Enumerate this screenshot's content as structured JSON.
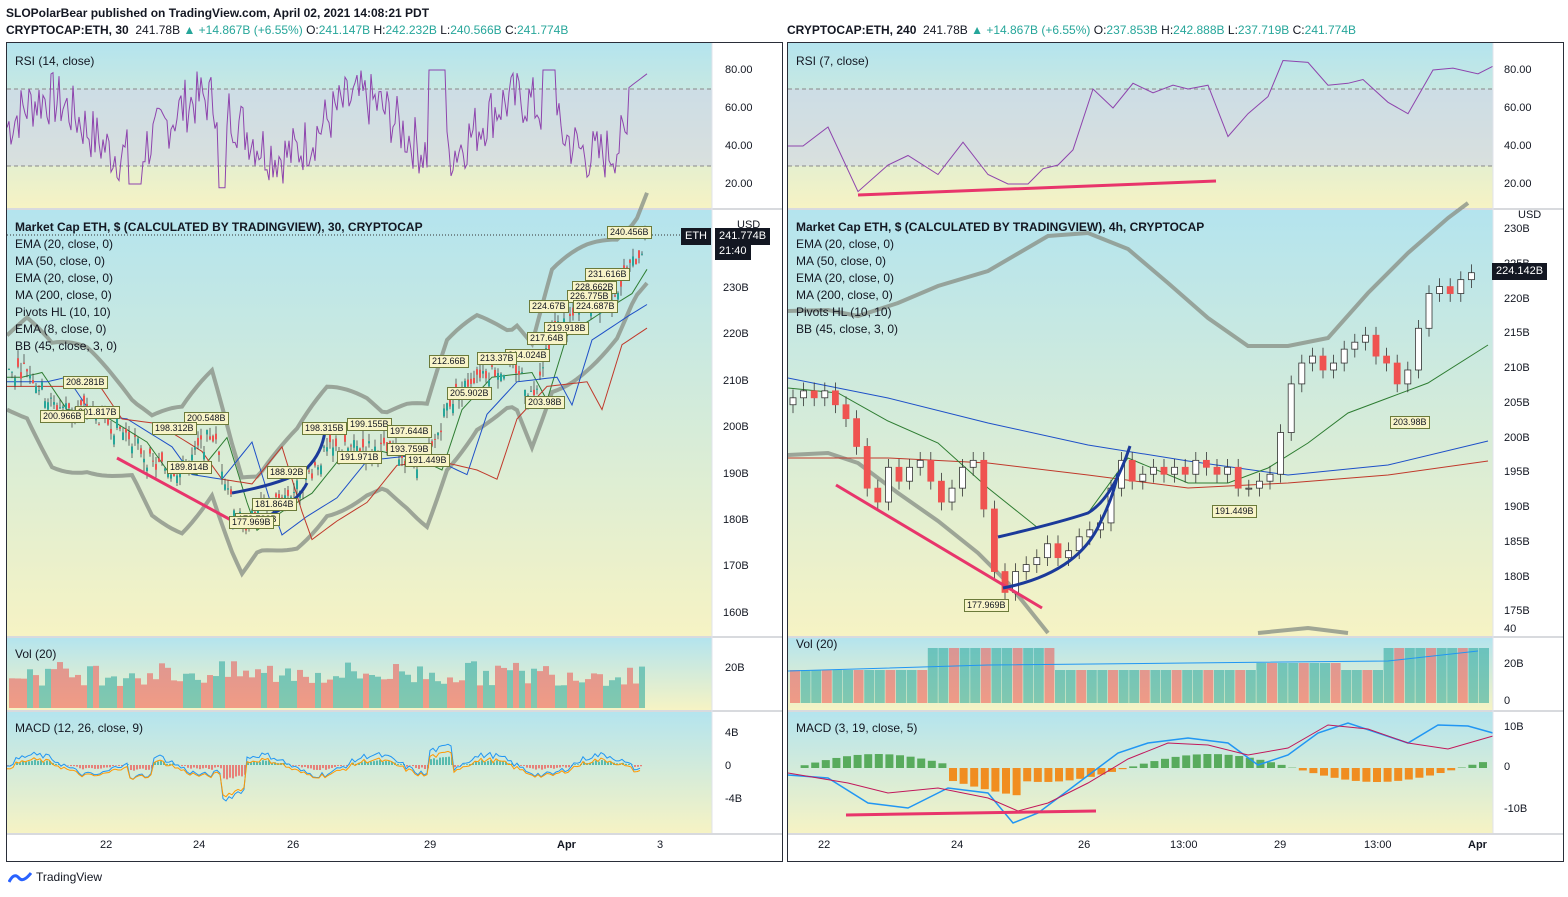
{
  "header": {
    "author_line": "SLOPolarBear published on TradingView.com, April 02, 2021 14:08:21 PDT"
  },
  "left_chart": {
    "title_prefix": "CRYPTOCAP:ETH, 30",
    "last": "241.78B",
    "change": "▲ +14.867B (+6.55%)",
    "o_label": "O:",
    "o": "241.147B",
    "h_label": "H:",
    "h": "242.232B",
    "l_label": "L:",
    "l": "240.566B",
    "c_label": "C:",
    "c": "241.774B",
    "rsi_label": "RSI (14, close)",
    "rsi_ticks": [
      "80.00",
      "60.00",
      "40.00",
      "20.00"
    ],
    "main_title": "Market Cap ETH, $ (CALCULATED BY TRADINGVIEW), 30, CRYPTOCAP",
    "legend": [
      "EMA (20, close, 0)",
      "MA (50, close, 0)",
      "EMA (20, close, 0)",
      "MA (200, close, 0)",
      "Pivots HL (10, 10)",
      "EMA (8, close, 0)",
      "BB (45, close, 3, 0)"
    ],
    "currency": "USD",
    "price_ticks": [
      "230B",
      "220B",
      "210B",
      "200B",
      "190B",
      "180B",
      "170B",
      "160B"
    ],
    "eth_tag": "ETH",
    "price_tag": "241.774B",
    "time_tag": "21:40",
    "pivot_tags": [
      "240.456B",
      "231.616B",
      "228.662B",
      "226.775B",
      "224.67B",
      "224.687B",
      "219.918B",
      "217.64B",
      "214.024B",
      "213.37B",
      "212.66B",
      "205.902B",
      "203.98B",
      "199.155B",
      "198.315B",
      "197.644B",
      "193.759B",
      "191.971B",
      "191.449B",
      "188.92B",
      "181.864B",
      "178.788B",
      "177.969B",
      "200.548B",
      "198.312B",
      "208.281B",
      "201.817B",
      "200.966B",
      "189.814B"
    ],
    "vol_label": "Vol (20)",
    "vol_tick": "20B",
    "macd_label": "MACD (12, 26, close, 9)",
    "macd_ticks": [
      "4B",
      "0",
      "-4B"
    ],
    "dates": [
      "22",
      "24",
      "26",
      "29",
      "Apr",
      "3"
    ]
  },
  "right_chart": {
    "title_prefix": "CRYPTOCAP:ETH, 240",
    "last": "241.78B",
    "change": "▲ +14.867B (+6.55%)",
    "o_label": "O:",
    "o": "237.853B",
    "h_label": "H:",
    "h": "242.888B",
    "l_label": "L:",
    "l": "237.719B",
    "c_label": "C:",
    "c": "241.774B",
    "rsi_label": "RSI (7, close)",
    "rsi_ticks": [
      "80.00",
      "60.00",
      "40.00",
      "20.00"
    ],
    "main_title": "Market Cap ETH, $ (CALCULATED BY TRADINGVIEW), 4h, CRYPTOCAP",
    "legend": [
      "EMA (20, close, 0)",
      "MA (50, close, 0)",
      "EMA (20, close, 0)",
      "MA (200, close, 0)",
      "Pivots HL (10, 10)",
      "BB (45, close, 3, 0)"
    ],
    "currency": "USD",
    "price_ticks": [
      "230B",
      "225B",
      "220B",
      "215B",
      "210B",
      "205B",
      "200B",
      "195B",
      "190B",
      "185B",
      "180B",
      "175B"
    ],
    "price_tag": "224.142B",
    "pivot_tags": [
      "177.969B",
      "191.449B",
      "203.98B"
    ],
    "vol_label": "Vol (20)",
    "vol_ticks": [
      "40",
      "20B",
      "0"
    ],
    "macd_label": "MACD (3, 19, close, 5)",
    "macd_ticks": [
      "10B",
      "0",
      "-10B"
    ],
    "dates": [
      "22",
      "24",
      "26",
      "13:00",
      "29",
      "13:00",
      "Apr"
    ]
  },
  "footer": {
    "brand": "TradingView"
  },
  "colors": {
    "rsi_line": "#8e44ad",
    "rsi_band": "#d0d5e8",
    "bg_top": "#b4e4ee",
    "bg_bottom": "#f6f3c4",
    "bull": "#26a69a",
    "bear": "#ef5350",
    "bb": "#8b9288",
    "ema_green": "#2e7d32",
    "ma_blue": "#1e50c8",
    "ma_red": "#c0392b",
    "trend_pink": "#e8356b",
    "curve_blue": "#1b3a9a"
  }
}
